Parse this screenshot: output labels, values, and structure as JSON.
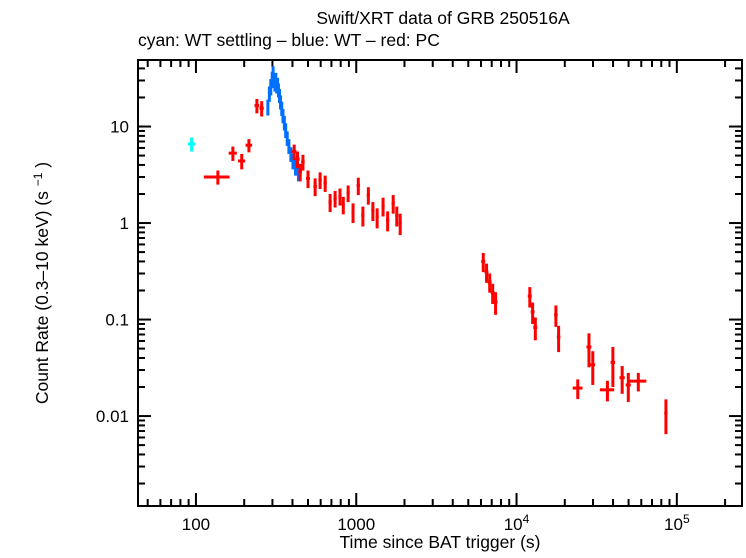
{
  "chart_data": {
    "type": "scatter",
    "title": "Swift/XRT data of GRB 250516A",
    "subtitle": "cyan: WT settling – blue: WT – red: PC",
    "xlabel": "Time since BAT trigger (s)",
    "ylabel": "Count Rate (0.3–10 keV) (s^-1)",
    "xscale": "log",
    "yscale": "log",
    "grid": false,
    "legend_position": "subtitle-text",
    "xlim": [
      43.5,
      255000
    ],
    "ylim": [
      0.00117,
      48.9
    ],
    "x_ticks": [
      {
        "v": 100,
        "base": "100",
        "sup": ""
      },
      {
        "v": 1000,
        "base": "1000",
        "sup": ""
      },
      {
        "v": 10000,
        "base": "10",
        "sup": "4"
      },
      {
        "v": 100000,
        "base": "10",
        "sup": "5"
      }
    ],
    "y_ticks": [
      {
        "v": 10,
        "label": "10"
      },
      {
        "v": 1,
        "label": "1"
      },
      {
        "v": 0.1,
        "label": "0.1"
      },
      {
        "v": 0.01,
        "label": "0.01"
      }
    ],
    "point_format": [
      "time_s",
      "rate_counts_per_s",
      "time_err_s",
      "rate_err_counts_per_s"
    ],
    "series": [
      {
        "name": "WT settling",
        "color": "#00ffff",
        "points": [
          [
            94,
            6.6,
            5,
            1.1
          ]
        ]
      },
      {
        "name": "WT",
        "color": "#0070ff",
        "points": [
          [
            281,
            16,
            4,
            3
          ],
          [
            287,
            22,
            4,
            4
          ],
          [
            293,
            26,
            4,
            5
          ],
          [
            299,
            31,
            4,
            6
          ],
          [
            303,
            35,
            3,
            7
          ],
          [
            307,
            30,
            3,
            5
          ],
          [
            311,
            28,
            3,
            5
          ],
          [
            315,
            31,
            3,
            5
          ],
          [
            319,
            26,
            3,
            4
          ],
          [
            323,
            28,
            3,
            4
          ],
          [
            327,
            24,
            3,
            4
          ],
          [
            332,
            21,
            3,
            3.5
          ],
          [
            337,
            18,
            3,
            3
          ],
          [
            343,
            15.5,
            3,
            2.6
          ],
          [
            349,
            13,
            3,
            2.2
          ],
          [
            356,
            11,
            3,
            1.9
          ],
          [
            363,
            9.2,
            4,
            1.6
          ],
          [
            371,
            7.6,
            4,
            1.3
          ],
          [
            380,
            6.3,
            4,
            1.1
          ],
          [
            391,
            5.2,
            5,
            0.9
          ],
          [
            403,
            4.4,
            6,
            0.8
          ],
          [
            418,
            3.8,
            7,
            0.7
          ],
          [
            436,
            3.3,
            8,
            0.6
          ]
        ]
      },
      {
        "name": "PC",
        "color": "#ff0000",
        "points": [
          [
            137,
            3.0,
            25,
            0.5
          ],
          [
            170,
            5.3,
            10,
            0.9
          ],
          [
            193,
            4.4,
            10,
            0.8
          ],
          [
            214,
            6.4,
            10,
            1.0
          ],
          [
            240,
            16.5,
            8,
            2.8
          ],
          [
            257,
            15.5,
            8,
            2.8
          ],
          [
            410,
            5.5,
            14,
            1.0
          ],
          [
            430,
            4.6,
            14,
            0.9
          ],
          [
            447,
            3.4,
            12,
            0.7
          ],
          [
            465,
            4.3,
            12,
            0.8
          ],
          [
            500,
            2.9,
            14,
            0.6
          ],
          [
            554,
            2.4,
            14,
            0.5
          ],
          [
            595,
            2.8,
            14,
            0.55
          ],
          [
            640,
            2.6,
            15,
            0.5
          ],
          [
            687,
            1.65,
            16,
            0.35
          ],
          [
            738,
            1.8,
            17,
            0.35
          ],
          [
            792,
            1.9,
            18,
            0.38
          ],
          [
            830,
            1.55,
            18,
            0.32
          ],
          [
            890,
            2.05,
            20,
            0.4
          ],
          [
            955,
            1.3,
            20,
            0.3
          ],
          [
            1030,
            2.45,
            24,
            0.5
          ],
          [
            1100,
            1.2,
            25,
            0.28
          ],
          [
            1190,
            1.95,
            28,
            0.4
          ],
          [
            1270,
            1.35,
            28,
            0.3
          ],
          [
            1350,
            1.15,
            30,
            0.27
          ],
          [
            1470,
            1.5,
            33,
            0.33
          ],
          [
            1570,
            1.07,
            35,
            0.25
          ],
          [
            1700,
            1.6,
            38,
            0.35
          ],
          [
            1790,
            1.2,
            40,
            0.28
          ],
          [
            1880,
            1.0,
            42,
            0.25
          ],
          [
            6200,
            0.4,
            180,
            0.09
          ],
          [
            6500,
            0.31,
            180,
            0.07
          ],
          [
            6800,
            0.245,
            190,
            0.055
          ],
          [
            7100,
            0.19,
            200,
            0.045
          ],
          [
            7400,
            0.152,
            210,
            0.04
          ],
          [
            12100,
            0.175,
            350,
            0.042
          ],
          [
            12600,
            0.12,
            350,
            0.03
          ],
          [
            13100,
            0.083,
            380,
            0.022
          ],
          [
            17600,
            0.112,
            450,
            0.028
          ],
          [
            18300,
            0.066,
            470,
            0.02
          ],
          [
            24100,
            0.0195,
            1700,
            0.0045
          ],
          [
            28300,
            0.052,
            1000,
            0.02
          ],
          [
            29900,
            0.034,
            1000,
            0.013
          ],
          [
            36900,
            0.0187,
            3800,
            0.0045
          ],
          [
            39900,
            0.036,
            1300,
            0.016
          ],
          [
            45600,
            0.025,
            1700,
            0.008
          ],
          [
            49800,
            0.021,
            1800,
            0.007
          ],
          [
            57500,
            0.023,
            7000,
            0.005
          ],
          [
            85500,
            0.0107,
            2000,
            0.0042
          ]
        ]
      }
    ]
  },
  "labels": {
    "x": "Time since BAT trigger (s)",
    "y_prefix": "Count Rate (0.3–10 keV) (s",
    "y_sup": "−1",
    "y_suffix": ")"
  }
}
